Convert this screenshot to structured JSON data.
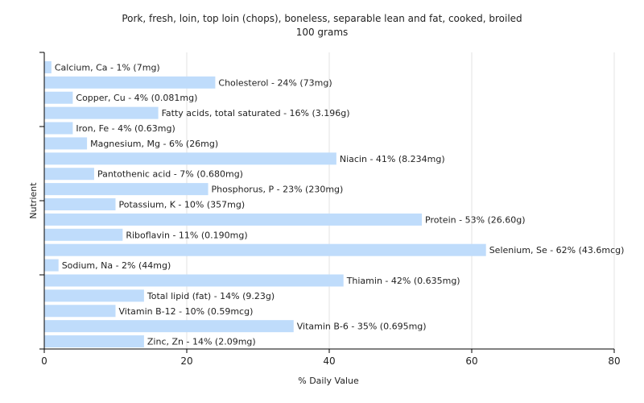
{
  "chart_data": {
    "type": "bar",
    "orientation": "horizontal",
    "title_line1": "Pork, fresh, loin, top loin (chops), boneless, separable lean and fat, cooked, broiled",
    "title_line2": "100 grams",
    "xlabel": "% Daily Value",
    "ylabel": "Nutrient",
    "xlim": [
      0,
      80
    ],
    "xticks": [
      "0",
      "20",
      "40",
      "60",
      "80"
    ],
    "grid": "vertical",
    "bar_color": "#bfdcfb",
    "categories": [
      "Calcium, Ca",
      "Cholesterol",
      "Copper, Cu",
      "Fatty acids, total saturated",
      "Iron, Fe",
      "Magnesium, Mg",
      "Niacin",
      "Pantothenic acid",
      "Phosphorus, P",
      "Potassium, K",
      "Protein",
      "Riboflavin",
      "Selenium, Se",
      "Sodium, Na",
      "Thiamin",
      "Total lipid (fat)",
      "Vitamin B-12",
      "Vitamin B-6",
      "Zinc, Zn"
    ],
    "values": [
      1,
      24,
      4,
      16,
      4,
      6,
      41,
      7,
      23,
      10,
      53,
      11,
      62,
      2,
      42,
      14,
      10,
      35,
      14
    ],
    "bar_labels": [
      "Calcium, Ca - 1% (7mg)",
      "Cholesterol - 24% (73mg)",
      "Copper, Cu - 4% (0.081mg)",
      "Fatty acids, total saturated - 16% (3.196g)",
      "Iron, Fe - 4% (0.63mg)",
      "Magnesium, Mg - 6% (26mg)",
      "Niacin - 41% (8.234mg)",
      "Pantothenic acid - 7% (0.680mg)",
      "Phosphorus, P - 23% (230mg)",
      "Potassium, K - 10% (357mg)",
      "Protein - 53% (26.60g)",
      "Riboflavin - 11% (0.190mg)",
      "Selenium, Se - 62% (43.6mcg)",
      "Sodium, Na - 2% (44mg)",
      "Thiamin - 42% (0.635mg)",
      "Total lipid (fat) - 14% (9.23g)",
      "Vitamin B-12 - 10% (0.59mcg)",
      "Vitamin B-6 - 35% (0.695mg)",
      "Zinc, Zn - 14% (2.09mg)"
    ]
  }
}
